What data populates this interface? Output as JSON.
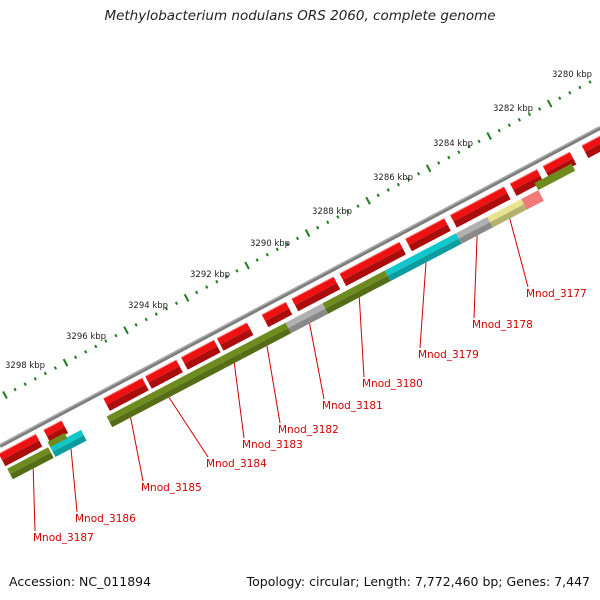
{
  "title": "Methylobacterium nodulans ORS 2060, complete genome",
  "footer": {
    "accession": "Accession: NC_011894",
    "summary": "Topology: circular; Length: 7,772,460 bp; Genes: 7,447"
  },
  "ruler": {
    "labels": [
      "3280 kbp",
      "3282 kbp",
      "3284 kbp",
      "3286 kbp",
      "3288 kbp",
      "3290 kbp",
      "3292 kbp",
      "3294 kbp",
      "3296 kbp",
      "3298 kbp"
    ]
  },
  "genes": [
    {
      "label": "Mnod_3177",
      "color": "#e8e48e"
    },
    {
      "label": "Mnod_3178",
      "color": "#b0b0b0"
    },
    {
      "label": "Mnod_3179",
      "color": "#10c8cc"
    },
    {
      "label": "Mnod_3180",
      "color": "#6e8c1e"
    },
    {
      "label": "Mnod_3181",
      "color": "#b0b0b0"
    },
    {
      "label": "Mnod_3182",
      "color": "#6e8c1e"
    },
    {
      "label": "Mnod_3183",
      "color": "#6e8c1e"
    },
    {
      "label": "Mnod_3184",
      "color": "#6e8c1e"
    },
    {
      "label": "Mnod_3185",
      "color": "#6e8c1e"
    },
    {
      "label": "Mnod_3186",
      "color": "#10c8cc"
    },
    {
      "label": "Mnod_3187",
      "color": "#6e8c1e"
    }
  ],
  "colors": {
    "cds": "#ee1111",
    "backbone": "#7d7d7d",
    "tick": "#1e7d1e",
    "label": "#d00000"
  }
}
